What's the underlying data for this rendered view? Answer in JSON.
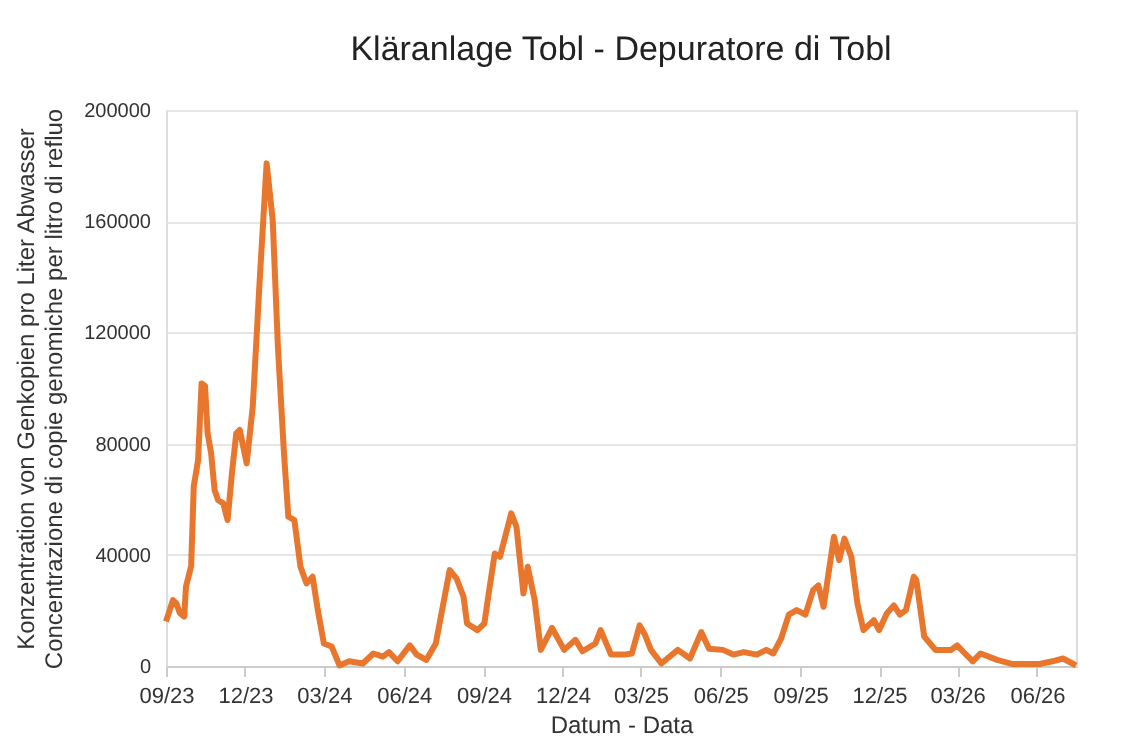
{
  "chart_data": {
    "type": "line",
    "title": "Kläranlage Tobl - Depuratore di Tobl",
    "xlabel": "Datum - Data",
    "ylabel": "Konzentration von Genkopien pro Liter Abwasser\nConcentrazione di copie genomiche per litro di refluo",
    "x": [
      "2023-09-01",
      "2023-09-09",
      "2023-09-13",
      "2023-09-17",
      "2023-09-22",
      "2023-09-24",
      "2023-09-30",
      "2023-10-03",
      "2023-10-08",
      "2023-10-12",
      "2023-10-16",
      "2023-10-19",
      "2023-10-23",
      "2023-10-27",
      "2023-10-31",
      "2023-11-06",
      "2023-11-11",
      "2023-11-16",
      "2023-11-21",
      "2023-11-25",
      "2023-12-03",
      "2023-12-10",
      "2023-12-18",
      "2023-12-26",
      "2024-01-02",
      "2024-01-08",
      "2024-01-15",
      "2024-01-20",
      "2024-01-27",
      "2024-02-03",
      "2024-02-10",
      "2024-02-17",
      "2024-02-23",
      "2024-03-01",
      "2024-03-10",
      "2024-03-19",
      "2024-03-30",
      "2024-04-15",
      "2024-04-27",
      "2024-05-08",
      "2024-05-15",
      "2024-05-25",
      "2024-06-08",
      "2024-06-16",
      "2024-06-27",
      "2024-07-08",
      "2024-07-16",
      "2024-07-24",
      "2024-08-01",
      "2024-08-09",
      "2024-08-13",
      "2024-08-25",
      "2024-09-02",
      "2024-09-07",
      "2024-09-14",
      "2024-09-20",
      "2024-10-03",
      "2024-10-09",
      "2024-10-17",
      "2024-10-22",
      "2024-10-30",
      "2024-11-06",
      "2024-11-19",
      "2024-12-03",
      "2024-12-16",
      "2024-12-24",
      "2025-01-08",
      "2025-01-14",
      "2025-01-26",
      "2025-02-10",
      "2025-02-19",
      "2025-02-28",
      "2025-03-06",
      "2025-03-13",
      "2025-03-25",
      "2025-04-13",
      "2025-04-27",
      "2025-05-10",
      "2025-05-19",
      "2025-06-04",
      "2025-06-16",
      "2025-06-28",
      "2025-07-13",
      "2025-07-24",
      "2025-08-01",
      "2025-08-10",
      "2025-08-19",
      "2025-08-28",
      "2025-09-07",
      "2025-09-16",
      "2025-09-22",
      "2025-09-28",
      "2025-10-10",
      "2025-10-16",
      "2025-10-22",
      "2025-10-30",
      "2025-11-06",
      "2025-11-13",
      "2025-11-25",
      "2025-12-01",
      "2025-12-10",
      "2025-12-18",
      "2025-12-25",
      "2026-01-01",
      "2026-01-10",
      "2026-01-13",
      "2026-01-22",
      "2026-02-04",
      "2026-02-22",
      "2026-03-01",
      "2026-03-10",
      "2026-03-19",
      "2026-03-28",
      "2026-04-16",
      "2026-05-04",
      "2026-06-04",
      "2026-06-19",
      "2026-07-01",
      "2026-07-16"
    ],
    "series": [
      {
        "color": "#e8762c",
        "values": [
          16000,
          23700,
          22500,
          19000,
          17800,
          28500,
          36000,
          64700,
          74000,
          101600,
          100700,
          83700,
          76500,
          63300,
          59700,
          58500,
          52500,
          69300,
          83700,
          84900,
          72900,
          93300,
          138800,
          180800,
          160400,
          114900,
          76500,
          53700,
          52500,
          35700,
          29700,
          32100,
          20100,
          8100,
          7000,
          200,
          1700,
          900,
          4500,
          3400,
          5000,
          1700,
          7400,
          4100,
          2200,
          8100,
          21300,
          34500,
          31400,
          24900,
          15300,
          12900,
          15300,
          26100,
          40500,
          39300,
          54900,
          50100,
          26100,
          35700,
          23700,
          5800,
          13700,
          5800,
          9400,
          5300,
          8100,
          12900,
          4100,
          4100,
          4500,
          14600,
          11300,
          5800,
          900,
          5800,
          2700,
          12200,
          6200,
          5800,
          4100,
          5000,
          4100,
          5800,
          4500,
          9800,
          18500,
          20100,
          18500,
          27300,
          29000,
          21300,
          46500,
          38100,
          45800,
          39300,
          22500,
          12900,
          16500,
          12900,
          19000,
          21800,
          18500,
          20100,
          32100,
          30900,
          10600,
          5800,
          5800,
          7400,
          4500,
          1700,
          4500,
          2200,
          700,
          700,
          1700,
          2700,
          200
        ]
      }
    ],
    "xlim": [
      "2023-09-01",
      "2026-07-16"
    ],
    "xticks": [
      {
        "value": "2023-09-01",
        "label": "09/23"
      },
      {
        "value": "2023-12-01",
        "label": "12/23"
      },
      {
        "value": "2024-03-01",
        "label": "03/24"
      },
      {
        "value": "2024-06-01",
        "label": "06/24"
      },
      {
        "value": "2024-09-01",
        "label": "09/24"
      },
      {
        "value": "2024-12-01",
        "label": "12/24"
      },
      {
        "value": "2025-03-01",
        "label": "03/25"
      },
      {
        "value": "2025-06-01",
        "label": "06/25"
      },
      {
        "value": "2025-09-01",
        "label": "09/25"
      },
      {
        "value": "2025-12-01",
        "label": "12/25"
      },
      {
        "value": "2026-03-01",
        "label": "03/26"
      },
      {
        "value": "2026-06-01",
        "label": "06/26"
      }
    ],
    "ylim": [
      0,
      200000
    ],
    "yticks": [
      0,
      40000,
      80000,
      120000,
      160000,
      200000
    ],
    "grid": "y",
    "marker": "none",
    "line_style": "solid"
  }
}
